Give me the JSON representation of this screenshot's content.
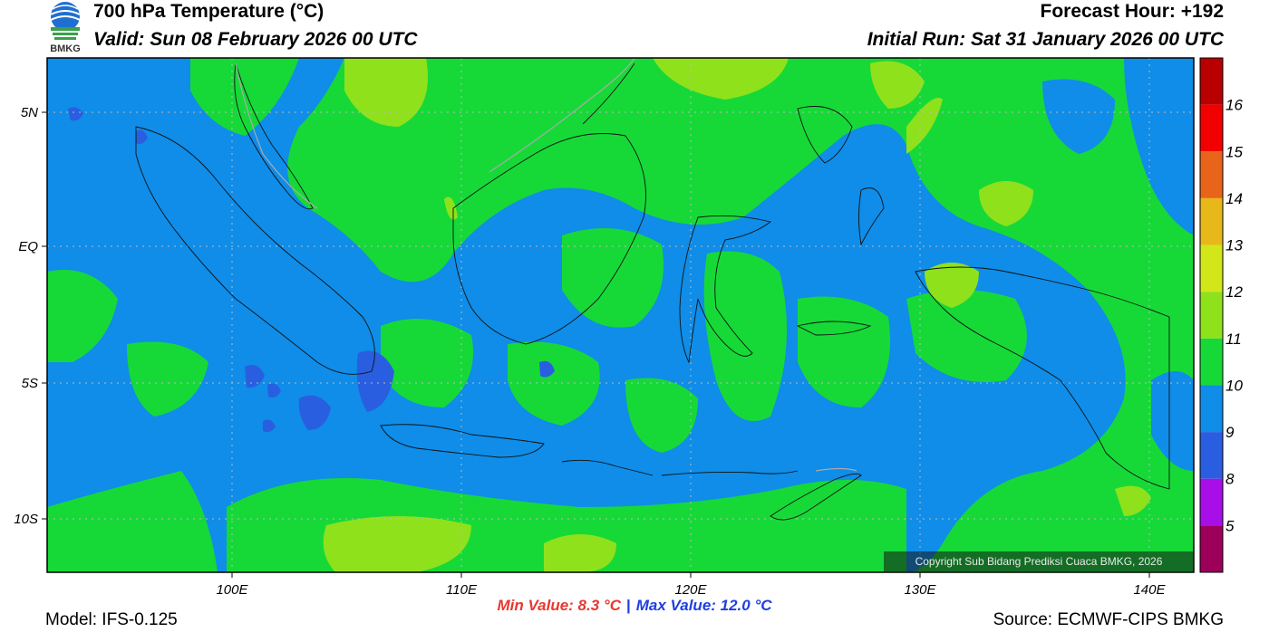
{
  "header": {
    "title": "700 hPa Temperature (°C)",
    "valid": "Valid: Sun 08 February 2026 00 UTC",
    "forecast_hour": "Forecast Hour: +192",
    "initial_run": "Initial Run: Sat 31 January 2026 00 UTC",
    "logo_text": "BMKG"
  },
  "map": {
    "lat_labels": [
      "5N",
      "EQ",
      "5S",
      "10S"
    ],
    "lon_labels": [
      "100E",
      "110E",
      "120E",
      "130E",
      "140E"
    ],
    "lon_range": [
      92,
      142
    ],
    "lat_range": [
      -12,
      7
    ],
    "field_colors": {
      "le9": "#2a5ee0",
      "9_10": "#0f8de8",
      "10_11": "#16d938",
      "11_12": "#8fe11c",
      "12_13": "#c5ee22"
    },
    "copyright": "Copyright Sub Bidang Prediksi Cuaca BMKG, 2026"
  },
  "colorbar": {
    "labels": [
      "16",
      "15",
      "14",
      "13",
      "12",
      "11",
      "10",
      "9",
      "8",
      "5"
    ],
    "colors": [
      "#b80000",
      "#f20000",
      "#e8641a",
      "#e8b81a",
      "#d2e619",
      "#8fe11c",
      "#16d938",
      "#0f8de8",
      "#2a5ee0",
      "#a80fe8",
      "#9c005a"
    ]
  },
  "stats": {
    "min": "Min Value: 8.3 °C",
    "separator": "|",
    "max": "Max Value: 12.0 °C"
  },
  "footer": {
    "model": "Model: IFS-0.125",
    "source": "Source: ECMWF-CIPS BMKG"
  }
}
